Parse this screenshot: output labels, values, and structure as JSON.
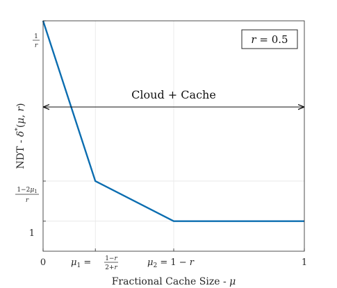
{
  "chart_data": {
    "type": "line",
    "xlabel": "Fractional Cache Size - μ",
    "ylabel": "NDT - δ*(μ, r)",
    "xlim": [
      0,
      1
    ],
    "ylim": [
      0.85,
      2.0
    ],
    "grid": true,
    "x": [
      0,
      0.2,
      0.5,
      1.0
    ],
    "series": [
      {
        "values": [
          2.0,
          1.2,
          1.0,
          1.0
        ],
        "color": "#0b6db0"
      }
    ],
    "x_ticks": [
      {
        "value": 0,
        "label": "0"
      },
      {
        "value": 0.2,
        "label": "μ₁ = (1−r)/(2+r)"
      },
      {
        "value": 0.5,
        "label": "μ₂ = 1 − r"
      },
      {
        "value": 1,
        "label": "1"
      }
    ],
    "y_ticks": [
      {
        "value": 1.0,
        "label": "1"
      },
      {
        "value": 1.2,
        "label": "(1−2μ₁)/r"
      },
      {
        "value": 2.0,
        "label": "1/r"
      }
    ],
    "legend_box": {
      "text": "r = 0.5",
      "placement": "top-right"
    },
    "annotation": {
      "text": "Cloud + Cache",
      "y": 1.57,
      "x_range": [
        0,
        1
      ],
      "arrow": "double"
    },
    "colors": {
      "line": "#0b6db0",
      "grid": "#e6e6e6",
      "axis": "#262626"
    }
  }
}
